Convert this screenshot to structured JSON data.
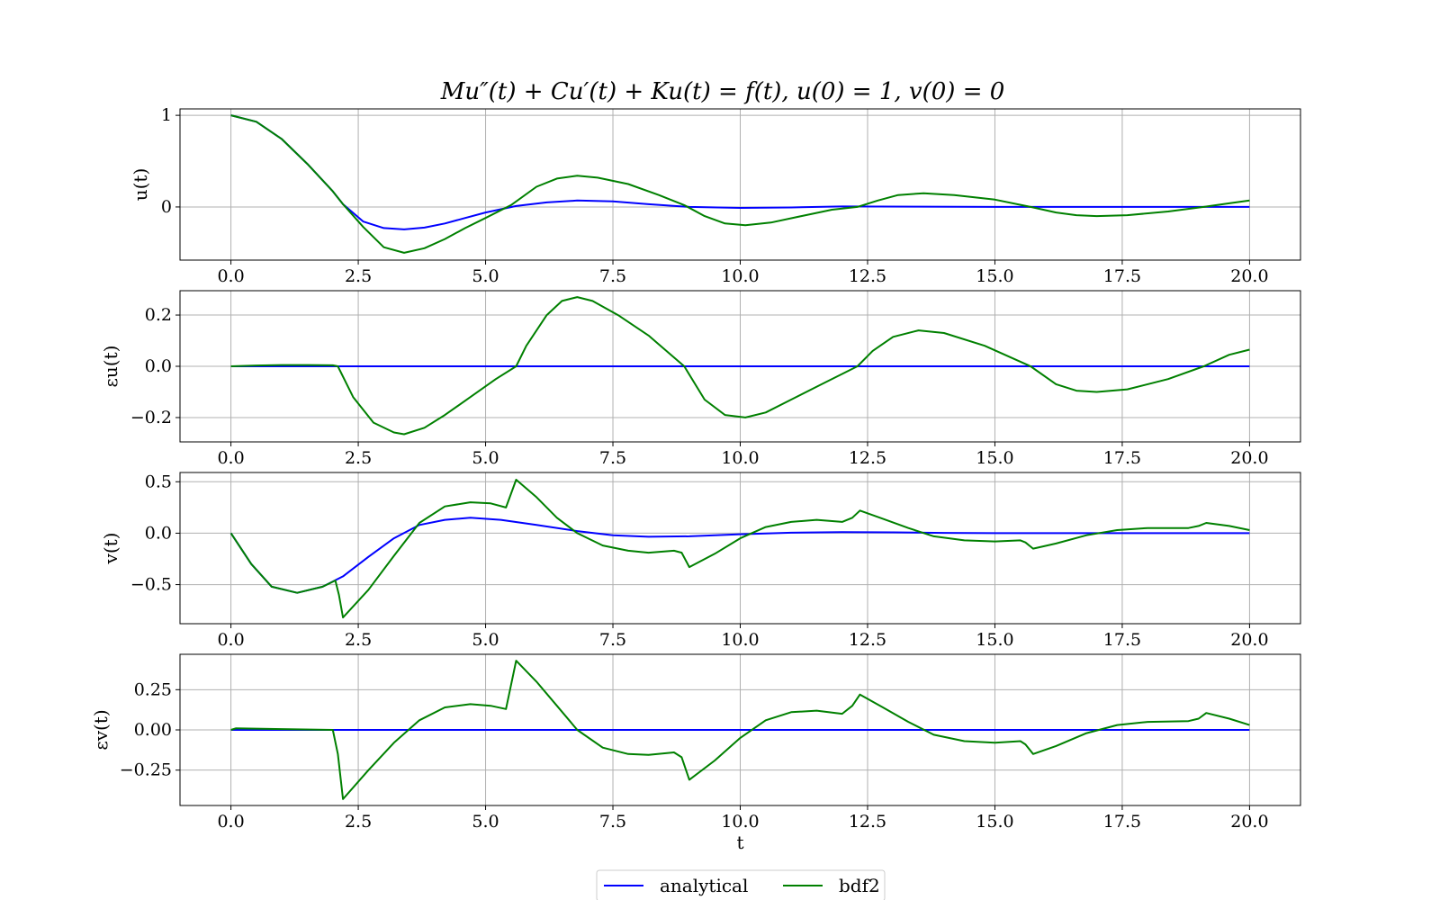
{
  "title": "Mu″(t) + Cu′(t) + Ku(t) = f(t), u(0) = 1, v(0) = 0",
  "legend": {
    "placement": "bottom-center",
    "entries": [
      {
        "label": "analytical",
        "color": "#0000ff"
      },
      {
        "label": "bdf2",
        "color": "#008000"
      }
    ]
  },
  "chart_data": [
    {
      "type": "line",
      "ylabel": "u(t)",
      "xlabel": "",
      "xlim": [
        -1,
        21
      ],
      "ylim": [
        -0.58,
        1.07
      ],
      "grid": true,
      "x_ticks": [
        0.0,
        2.5,
        5.0,
        7.5,
        10.0,
        12.5,
        15.0,
        17.5,
        20.0
      ],
      "x_tick_labels": [
        "0.0",
        "2.5",
        "5.0",
        "7.5",
        "10.0",
        "12.5",
        "15.0",
        "17.5",
        "20.0"
      ],
      "y_ticks": [
        0,
        1
      ],
      "y_tick_labels": [
        "0",
        "1"
      ],
      "series": [
        {
          "name": "analytical",
          "color": "#0000ff",
          "x": [
            0,
            0.5,
            1.0,
            1.5,
            2.0,
            2.2,
            2.6,
            3.0,
            3.4,
            3.8,
            4.2,
            4.6,
            5.0,
            5.6,
            6.2,
            6.8,
            7.5,
            8.2,
            9.0,
            10.0,
            11.0,
            12.0,
            13.5,
            15.0,
            17.0,
            20.0
          ],
          "y": [
            1.0,
            0.93,
            0.74,
            0.47,
            0.17,
            0.03,
            -0.16,
            -0.23,
            -0.245,
            -0.225,
            -0.18,
            -0.12,
            -0.06,
            0.01,
            0.05,
            0.07,
            0.06,
            0.03,
            0.0,
            -0.01,
            -0.005,
            0.005,
            0.003,
            0.0,
            0.0,
            0.0
          ]
        },
        {
          "name": "bdf2",
          "color": "#008000",
          "x": [
            0,
            0.5,
            1.0,
            1.5,
            2.0,
            2.2,
            2.6,
            3.0,
            3.4,
            3.8,
            4.2,
            4.6,
            5.0,
            5.5,
            6.0,
            6.4,
            6.8,
            7.2,
            7.8,
            8.4,
            8.9,
            9.3,
            9.7,
            10.1,
            10.6,
            11.2,
            11.8,
            12.3,
            12.7,
            13.1,
            13.6,
            14.2,
            15.0,
            15.7,
            16.2,
            16.6,
            17.0,
            17.6,
            18.4,
            19.1,
            19.6,
            20.0
          ],
          "y": [
            1.0,
            0.93,
            0.74,
            0.47,
            0.17,
            0.03,
            -0.22,
            -0.44,
            -0.5,
            -0.45,
            -0.35,
            -0.23,
            -0.12,
            0.02,
            0.22,
            0.31,
            0.34,
            0.32,
            0.25,
            0.13,
            0.02,
            -0.1,
            -0.18,
            -0.2,
            -0.17,
            -0.1,
            -0.03,
            0.0,
            0.07,
            0.13,
            0.15,
            0.13,
            0.08,
            0.0,
            -0.06,
            -0.09,
            -0.1,
            -0.09,
            -0.05,
            0.0,
            0.04,
            0.07
          ]
        }
      ]
    },
    {
      "type": "line",
      "ylabel": "εu(t)",
      "xlabel": "",
      "xlim": [
        -1,
        21
      ],
      "ylim": [
        -0.295,
        0.295
      ],
      "grid": true,
      "x_ticks": [
        0.0,
        2.5,
        5.0,
        7.5,
        10.0,
        12.5,
        15.0,
        17.5,
        20.0
      ],
      "x_tick_labels": [
        "0.0",
        "2.5",
        "5.0",
        "7.5",
        "10.0",
        "12.5",
        "15.0",
        "17.5",
        "20.0"
      ],
      "y_ticks": [
        -0.2,
        0.0,
        0.2
      ],
      "y_tick_labels": [
        "−0.2",
        "0.0",
        "0.2"
      ],
      "series": [
        {
          "name": "analytical",
          "color": "#0000ff",
          "x": [
            0,
            20
          ],
          "y": [
            0,
            0
          ]
        },
        {
          "name": "bdf2",
          "color": "#008000",
          "x": [
            0,
            0.5,
            1.0,
            1.5,
            2.0,
            2.1,
            2.4,
            2.8,
            3.2,
            3.4,
            3.8,
            4.2,
            4.7,
            5.2,
            5.6,
            5.8,
            6.2,
            6.5,
            6.8,
            7.1,
            7.6,
            8.2,
            8.9,
            9.3,
            9.7,
            10.1,
            10.5,
            11.0,
            11.6,
            12.3,
            12.6,
            13.0,
            13.5,
            14.0,
            14.8,
            15.7,
            16.2,
            16.6,
            17.0,
            17.6,
            18.4,
            19.1,
            19.6,
            20.0
          ],
          "y": [
            0,
            0.003,
            0.005,
            0.005,
            0.004,
            0.0,
            -0.12,
            -0.22,
            -0.258,
            -0.265,
            -0.24,
            -0.19,
            -0.12,
            -0.05,
            0.0,
            0.08,
            0.2,
            0.255,
            0.27,
            0.255,
            0.2,
            0.12,
            0.0,
            -0.13,
            -0.19,
            -0.2,
            -0.18,
            -0.13,
            -0.07,
            0.0,
            0.06,
            0.115,
            0.14,
            0.13,
            0.08,
            0.0,
            -0.07,
            -0.095,
            -0.1,
            -0.09,
            -0.05,
            0.0,
            0.045,
            0.065
          ]
        }
      ]
    },
    {
      "type": "line",
      "ylabel": "v(t)",
      "xlabel": "",
      "xlim": [
        -1,
        21
      ],
      "ylim": [
        -0.88,
        0.59
      ],
      "grid": true,
      "x_ticks": [
        0.0,
        2.5,
        5.0,
        7.5,
        10.0,
        12.5,
        15.0,
        17.5,
        20.0
      ],
      "x_tick_labels": [
        "0.0",
        "2.5",
        "5.0",
        "7.5",
        "10.0",
        "12.5",
        "15.0",
        "17.5",
        "20.0"
      ],
      "y_ticks": [
        -0.5,
        0.0,
        0.5
      ],
      "y_tick_labels": [
        "−0.5",
        "0.0",
        "0.5"
      ],
      "series": [
        {
          "name": "analytical",
          "color": "#0000ff",
          "x": [
            0,
            0.4,
            0.8,
            1.3,
            1.8,
            2.2,
            2.7,
            3.2,
            3.7,
            4.2,
            4.7,
            5.3,
            6.0,
            6.8,
            7.5,
            8.2,
            9.0,
            10.0,
            11.0,
            12.0,
            13.0,
            14.0,
            15.0,
            17.0,
            20.0
          ],
          "y": [
            0.0,
            -0.3,
            -0.52,
            -0.58,
            -0.52,
            -0.42,
            -0.23,
            -0.05,
            0.08,
            0.13,
            0.15,
            0.13,
            0.08,
            0.02,
            -0.02,
            -0.035,
            -0.03,
            -0.01,
            0.005,
            0.01,
            0.008,
            0.003,
            0.0,
            0.0,
            0.0
          ]
        },
        {
          "name": "bdf2",
          "color": "#008000",
          "x": [
            0,
            0.4,
            0.8,
            1.3,
            1.8,
            2.05,
            2.12,
            2.2,
            2.7,
            3.2,
            3.7,
            4.2,
            4.7,
            5.1,
            5.4,
            5.6,
            6.0,
            6.4,
            6.8,
            7.3,
            7.8,
            8.2,
            8.7,
            8.85,
            9.0,
            9.5,
            10.0,
            10.5,
            11.0,
            11.5,
            12.0,
            12.2,
            12.35,
            12.8,
            13.3,
            13.8,
            14.4,
            15.0,
            15.5,
            15.6,
            15.75,
            16.2,
            16.8,
            17.4,
            18.0,
            18.8,
            19.0,
            19.15,
            19.6,
            20.0
          ],
          "y": [
            0.0,
            -0.3,
            -0.52,
            -0.58,
            -0.52,
            -0.46,
            -0.6,
            -0.82,
            -0.55,
            -0.22,
            0.1,
            0.26,
            0.3,
            0.29,
            0.25,
            0.52,
            0.35,
            0.15,
            0.0,
            -0.12,
            -0.17,
            -0.19,
            -0.17,
            -0.19,
            -0.33,
            -0.2,
            -0.05,
            0.06,
            0.11,
            0.13,
            0.11,
            0.15,
            0.22,
            0.14,
            0.05,
            -0.03,
            -0.07,
            -0.08,
            -0.07,
            -0.09,
            -0.15,
            -0.1,
            -0.02,
            0.03,
            0.05,
            0.05,
            0.07,
            0.1,
            0.07,
            0.03
          ]
        }
      ]
    },
    {
      "type": "line",
      "ylabel": "εv(t)",
      "xlabel": "t",
      "xlim": [
        -1,
        21
      ],
      "ylim": [
        -0.47,
        0.47
      ],
      "grid": true,
      "x_ticks": [
        0.0,
        2.5,
        5.0,
        7.5,
        10.0,
        12.5,
        15.0,
        17.5,
        20.0
      ],
      "x_tick_labels": [
        "0.0",
        "2.5",
        "5.0",
        "7.5",
        "10.0",
        "12.5",
        "15.0",
        "17.5",
        "20.0"
      ],
      "y_ticks": [
        -0.25,
        0.0,
        0.25
      ],
      "y_tick_labels": [
        "−0.25",
        "0.00",
        "0.25"
      ],
      "series": [
        {
          "name": "analytical",
          "color": "#0000ff",
          "x": [
            0,
            20
          ],
          "y": [
            0,
            0
          ]
        },
        {
          "name": "bdf2",
          "color": "#008000",
          "x": [
            0,
            0.1,
            1.0,
            2.0,
            2.1,
            2.2,
            2.7,
            3.2,
            3.7,
            4.2,
            4.7,
            5.1,
            5.4,
            5.6,
            6.0,
            6.4,
            6.8,
            7.3,
            7.8,
            8.2,
            8.7,
            8.85,
            9.0,
            9.5,
            10.0,
            10.5,
            11.0,
            11.5,
            12.0,
            12.2,
            12.35,
            12.8,
            13.3,
            13.8,
            14.4,
            15.0,
            15.5,
            15.6,
            15.75,
            16.2,
            16.8,
            17.4,
            18.0,
            18.8,
            19.0,
            19.15,
            19.6,
            20.0
          ],
          "y": [
            0.0,
            0.01,
            0.005,
            0.0,
            -0.15,
            -0.43,
            -0.25,
            -0.08,
            0.06,
            0.14,
            0.16,
            0.15,
            0.13,
            0.43,
            0.3,
            0.15,
            0.0,
            -0.11,
            -0.15,
            -0.155,
            -0.14,
            -0.17,
            -0.31,
            -0.19,
            -0.05,
            0.06,
            0.11,
            0.12,
            0.1,
            0.15,
            0.22,
            0.14,
            0.05,
            -0.03,
            -0.07,
            -0.08,
            -0.07,
            -0.09,
            -0.15,
            -0.1,
            -0.02,
            0.03,
            0.05,
            0.055,
            0.07,
            0.105,
            0.07,
            0.03
          ]
        }
      ]
    }
  ]
}
